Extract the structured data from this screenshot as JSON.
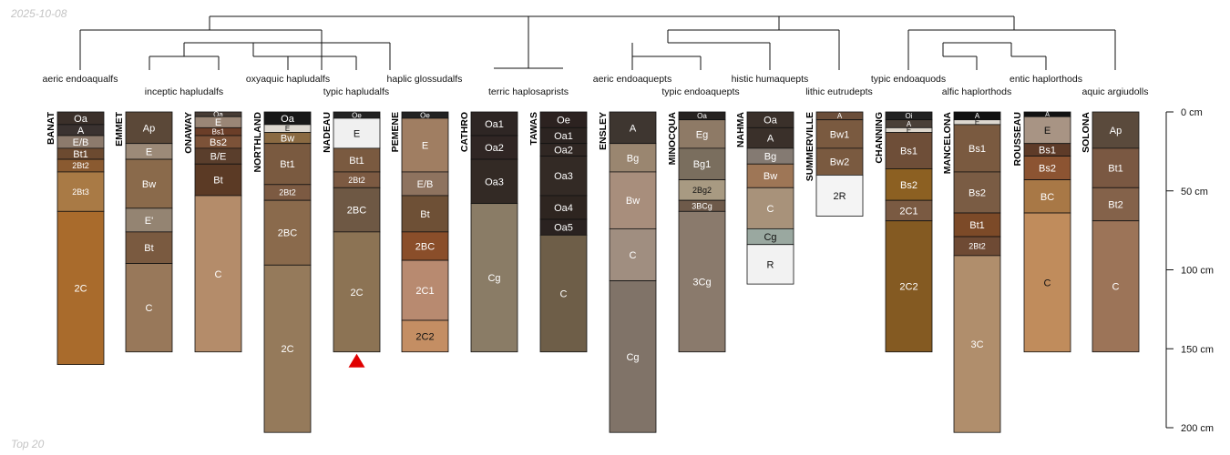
{
  "header": {
    "date": "2025-10-08"
  },
  "footer": {
    "note": "Top 20"
  },
  "chart_data": {
    "type": "soil-profile-sketch",
    "title": "",
    "depth_axis": {
      "unit": "cm",
      "ticks": [
        0,
        50,
        100,
        150,
        200
      ],
      "tick_labels": [
        "0 cm",
        "50 cm",
        "100 cm",
        "150 cm",
        "200 cm"
      ],
      "range": [
        0,
        200
      ]
    },
    "dendrogram_order": [
      "BANAT",
      "EMMET",
      "ONAWAY",
      "NORTHLAND",
      "NADEAU",
      "PEMENE",
      "CATHRO",
      "TAWAS",
      "ENSLEY",
      "MINOCQUA",
      "NAHMA",
      "SUMMERVILLE",
      "CHANNING",
      "MANCELONA",
      "ROUSSEAU",
      "SOLONA"
    ],
    "subgroups": [
      "aeric endoaqualfs",
      "inceptic hapludalfs",
      "oxyaquic hapludalfs",
      "typic hapludalfs",
      "haplic glossudalfs",
      "terric haplosaprists",
      "aeric endoaquepts",
      "typic endoaquepts",
      "histic humaquepts",
      "lithic eutrudepts",
      "typic endoaquods",
      "alfic haplorthods",
      "entic haplorthods",
      "aquic argiudolls"
    ],
    "marker": {
      "profile": "NADEAU",
      "symbol": "triangle",
      "color": "#e00000"
    },
    "profiles": [
      {
        "name": "BANAT",
        "horizons": [
          {
            "name": "Oa",
            "top": 0,
            "bottom": 8,
            "color": "#3b302a"
          },
          {
            "name": "A",
            "top": 8,
            "bottom": 15,
            "color": "#3a3230"
          },
          {
            "name": "E/B",
            "top": 15,
            "bottom": 23,
            "color": "#8c7a6c"
          },
          {
            "name": "Bt1",
            "top": 23,
            "bottom": 30,
            "color": "#6c4a30"
          },
          {
            "name": "2Bt2",
            "top": 30,
            "bottom": 38,
            "color": "#8a5a30"
          },
          {
            "name": "2Bt3",
            "top": 38,
            "bottom": 63,
            "color": "#a97a45"
          },
          {
            "name": "2C",
            "top": 63,
            "bottom": 160,
            "color": "#a96b2c"
          }
        ]
      },
      {
        "name": "EMMET",
        "horizons": [
          {
            "name": "Ap",
            "top": 0,
            "bottom": 20,
            "color": "#5b4838"
          },
          {
            "name": "E",
            "top": 20,
            "bottom": 30,
            "color": "#9c8a78"
          },
          {
            "name": "Bw",
            "top": 30,
            "bottom": 61,
            "color": "#8a6a4b"
          },
          {
            "name": "E'",
            "top": 61,
            "bottom": 76,
            "color": "#948472"
          },
          {
            "name": "Bt",
            "top": 76,
            "bottom": 96,
            "color": "#7a5a40"
          },
          {
            "name": "C",
            "top": 96,
            "bottom": 152,
            "color": "#98785a"
          }
        ]
      },
      {
        "name": "ONAWAY",
        "horizons": [
          {
            "name": "Oa",
            "top": 0,
            "bottom": 3,
            "color": "#473c35"
          },
          {
            "name": "E",
            "top": 3,
            "bottom": 10,
            "color": "#9a8676"
          },
          {
            "name": "Bs1",
            "top": 10,
            "bottom": 15,
            "color": "#6b3e28"
          },
          {
            "name": "Bs2",
            "top": 15,
            "bottom": 23,
            "color": "#7c5238"
          },
          {
            "name": "B/E",
            "top": 23,
            "bottom": 33,
            "color": "#5a3e2c"
          },
          {
            "name": "Bt",
            "top": 33,
            "bottom": 53,
            "color": "#5b3a25"
          },
          {
            "name": "C",
            "top": 53,
            "bottom": 152,
            "color": "#b48c6a"
          }
        ]
      },
      {
        "name": "NORTHLAND",
        "horizons": [
          {
            "name": "Oa",
            "top": 0,
            "bottom": 8,
            "color": "#181818"
          },
          {
            "name": "E",
            "top": 8,
            "bottom": 13,
            "color": "#ddd8d0"
          },
          {
            "name": "Bw",
            "top": 13,
            "bottom": 20,
            "color": "#8a6a42"
          },
          {
            "name": "Bt1",
            "top": 20,
            "bottom": 46,
            "color": "#7a5a40"
          },
          {
            "name": "2Bt2",
            "top": 46,
            "bottom": 56,
            "color": "#7c5a42"
          },
          {
            "name": "2BC",
            "top": 56,
            "bottom": 97,
            "color": "#8a6a4c"
          },
          {
            "name": "2C",
            "top": 97,
            "bottom": 203,
            "color": "#957a5b"
          }
        ]
      },
      {
        "name": "NADEAU",
        "horizons": [
          {
            "name": "Oe",
            "top": 0,
            "bottom": 4,
            "color": "#222222"
          },
          {
            "name": "E",
            "top": 4,
            "bottom": 23,
            "color": "#f0f0f0"
          },
          {
            "name": "Bt1",
            "top": 23,
            "bottom": 38,
            "color": "#7a5a40"
          },
          {
            "name": "2Bt2",
            "top": 38,
            "bottom": 48,
            "color": "#7c5a42"
          },
          {
            "name": "2BC",
            "top": 48,
            "bottom": 76,
            "color": "#6e5844"
          },
          {
            "name": "2C",
            "top": 76,
            "bottom": 152,
            "color": "#8c7354"
          }
        ]
      },
      {
        "name": "PEMENE",
        "horizons": [
          {
            "name": "Oe",
            "top": 0,
            "bottom": 4,
            "color": "#222222"
          },
          {
            "name": "E",
            "top": 4,
            "bottom": 38,
            "color": "#a07e62"
          },
          {
            "name": "E/B",
            "top": 38,
            "bottom": 53,
            "color": "#8e735f"
          },
          {
            "name": "Bt",
            "top": 53,
            "bottom": 76,
            "color": "#6e5036"
          },
          {
            "name": "2BC",
            "top": 76,
            "bottom": 94,
            "color": "#8a4e2a"
          },
          {
            "name": "2C1",
            "top": 94,
            "bottom": 132,
            "color": "#b88a70"
          },
          {
            "name": "2C2",
            "top": 132,
            "bottom": 152,
            "color": "#c48e63"
          }
        ]
      },
      {
        "name": "CATHRO",
        "horizons": [
          {
            "name": "Oa1",
            "top": 0,
            "bottom": 15,
            "color": "#2e2624"
          },
          {
            "name": "Oa2",
            "top": 15,
            "bottom": 30,
            "color": "#302624"
          },
          {
            "name": "Oa3",
            "top": 30,
            "bottom": 58,
            "color": "#332a25"
          },
          {
            "name": "Cg",
            "top": 58,
            "bottom": 152,
            "color": "#8a7c66"
          }
        ]
      },
      {
        "name": "TAWAS",
        "horizons": [
          {
            "name": "Oe",
            "top": 0,
            "bottom": 10,
            "color": "#2c2220"
          },
          {
            "name": "Oa1",
            "top": 10,
            "bottom": 20,
            "color": "#2c2421"
          },
          {
            "name": "Oa2",
            "top": 20,
            "bottom": 28,
            "color": "#302723"
          },
          {
            "name": "Oa3",
            "top": 28,
            "bottom": 53,
            "color": "#332a25"
          },
          {
            "name": "Oa4",
            "top": 53,
            "bottom": 68,
            "color": "#2e2520"
          },
          {
            "name": "Oa5",
            "top": 68,
            "bottom": 78,
            "color": "#2a2220"
          },
          {
            "name": "C",
            "top": 78,
            "bottom": 152,
            "color": "#6e5e48"
          }
        ]
      },
      {
        "name": "ENSLEY",
        "horizons": [
          {
            "name": "A",
            "top": 0,
            "bottom": 20,
            "color": "#3e3630"
          },
          {
            "name": "Bg",
            "top": 20,
            "bottom": 38,
            "color": "#9a8670"
          },
          {
            "name": "Bw",
            "top": 38,
            "bottom": 74,
            "color": "#a88e7c"
          },
          {
            "name": "C",
            "top": 74,
            "bottom": 107,
            "color": "#a08e80"
          },
          {
            "name": "Cg",
            "top": 107,
            "bottom": 203,
            "color": "#807368"
          }
        ]
      },
      {
        "name": "MINOCQUA",
        "horizons": [
          {
            "name": "Oa",
            "top": 0,
            "bottom": 5,
            "color": "#262220"
          },
          {
            "name": "Eg",
            "top": 5,
            "bottom": 23,
            "color": "#8e7a66"
          },
          {
            "name": "Bg1",
            "top": 23,
            "bottom": 43,
            "color": "#7a6e5e"
          },
          {
            "name": "2Bg2",
            "top": 43,
            "bottom": 56,
            "color": "#a89a82"
          },
          {
            "name": "3BCg",
            "top": 56,
            "bottom": 63,
            "color": "#6e5a4a"
          },
          {
            "name": "3Cg",
            "top": 63,
            "bottom": 152,
            "color": "#8a7a6c"
          }
        ]
      },
      {
        "name": "NAHMA",
        "horizons": [
          {
            "name": "Oa",
            "top": 0,
            "bottom": 10,
            "color": "#3a302a"
          },
          {
            "name": "A",
            "top": 10,
            "bottom": 23,
            "color": "#3a302a"
          },
          {
            "name": "Bg",
            "top": 23,
            "bottom": 33,
            "color": "#847a72"
          },
          {
            "name": "Bw",
            "top": 33,
            "bottom": 48,
            "color": "#9e7656"
          },
          {
            "name": "C",
            "top": 48,
            "bottom": 74,
            "color": "#a8927a"
          },
          {
            "name": "Cg",
            "top": 74,
            "bottom": 84,
            "color": "#9aa8a0"
          },
          {
            "name": "R",
            "top": 84,
            "bottom": 109,
            "color": "#f2f2f2"
          }
        ]
      },
      {
        "name": "SUMMERVILLE",
        "horizons": [
          {
            "name": "A",
            "top": 0,
            "bottom": 5,
            "color": "#6b4e3a"
          },
          {
            "name": "Bw1",
            "top": 5,
            "bottom": 23,
            "color": "#7a5a40"
          },
          {
            "name": "Bw2",
            "top": 23,
            "bottom": 40,
            "color": "#7a5a40"
          },
          {
            "name": "2R",
            "top": 40,
            "bottom": 66,
            "color": "#f4f4f4"
          }
        ]
      },
      {
        "name": "CHANNING",
        "horizons": [
          {
            "name": "Oi",
            "top": 0,
            "bottom": 5,
            "color": "#222222"
          },
          {
            "name": "A",
            "top": 5,
            "bottom": 10,
            "color": "#4a4038"
          },
          {
            "name": "E",
            "top": 10,
            "bottom": 13,
            "color": "#ddd6cc"
          },
          {
            "name": "Bs1",
            "top": 13,
            "bottom": 36,
            "color": "#6e4e38"
          },
          {
            "name": "Bs2",
            "top": 36,
            "bottom": 56,
            "color": "#8c6022"
          },
          {
            "name": "2C1",
            "top": 56,
            "bottom": 69,
            "color": "#7a5a42"
          },
          {
            "name": "2C2",
            "top": 69,
            "bottom": 152,
            "color": "#845a22"
          }
        ]
      },
      {
        "name": "MANCELONA",
        "horizons": [
          {
            "name": "A",
            "top": 0,
            "bottom": 5,
            "color": "#111111"
          },
          {
            "name": "E",
            "top": 5,
            "bottom": 8,
            "color": "#ddd8d0"
          },
          {
            "name": "Bs1",
            "top": 8,
            "bottom": 38,
            "color": "#7a5a40"
          },
          {
            "name": "Bs2",
            "top": 38,
            "bottom": 64,
            "color": "#7a5c44"
          },
          {
            "name": "Bt1",
            "top": 64,
            "bottom": 79,
            "color": "#7c4a28"
          },
          {
            "name": "2Bt2",
            "top": 79,
            "bottom": 91,
            "color": "#6e4a34"
          },
          {
            "name": "3C",
            "top": 91,
            "bottom": 203,
            "color": "#b08e6c"
          }
        ]
      },
      {
        "name": "ROUSSEAU",
        "horizons": [
          {
            "name": "A",
            "top": 0,
            "bottom": 3,
            "color": "#111111"
          },
          {
            "name": "E",
            "top": 3,
            "bottom": 20,
            "color": "#a89484"
          },
          {
            "name": "Bs1",
            "top": 20,
            "bottom": 28,
            "color": "#5e3b28"
          },
          {
            "name": "Bs2",
            "top": 28,
            "bottom": 43,
            "color": "#8c5432"
          },
          {
            "name": "BC",
            "top": 43,
            "bottom": 64,
            "color": "#a87846"
          },
          {
            "name": "C",
            "top": 64,
            "bottom": 152,
            "color": "#c08c5c"
          }
        ]
      },
      {
        "name": "SOLONA",
        "horizons": [
          {
            "name": "Ap",
            "top": 0,
            "bottom": 23,
            "color": "#5a4a3c"
          },
          {
            "name": "Bt1",
            "top": 23,
            "bottom": 48,
            "color": "#7a5842"
          },
          {
            "name": "Bt2",
            "top": 48,
            "bottom": 69,
            "color": "#84624a"
          },
          {
            "name": "C",
            "top": 69,
            "bottom": 152,
            "color": "#9c7458"
          }
        ]
      }
    ]
  }
}
